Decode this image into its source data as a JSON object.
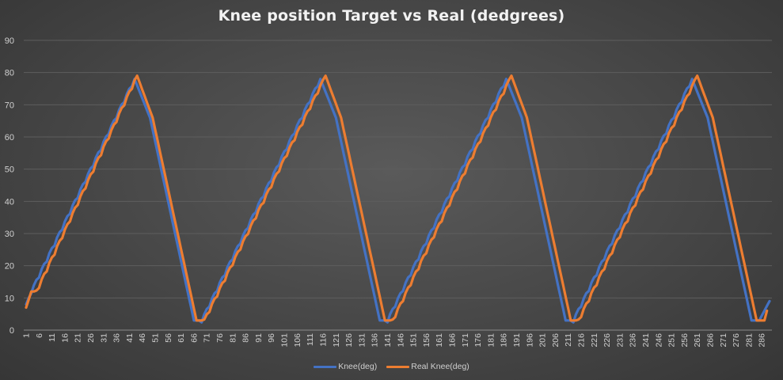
{
  "chart_data": {
    "type": "line",
    "title": "Knee position Target vs Real (dedgrees)",
    "xlabel": "",
    "ylabel": "",
    "ylim": [
      0,
      90
    ],
    "y_ticks": [
      0,
      10,
      20,
      30,
      40,
      50,
      60,
      70,
      80,
      90
    ],
    "x_range": [
      1,
      289
    ],
    "x_ticks": [
      1,
      6,
      11,
      16,
      21,
      26,
      31,
      36,
      41,
      46,
      51,
      56,
      61,
      66,
      71,
      76,
      81,
      86,
      91,
      96,
      101,
      106,
      111,
      116,
      121,
      126,
      131,
      136,
      141,
      146,
      151,
      156,
      161,
      166,
      171,
      176,
      181,
      186,
      191,
      196,
      201,
      206,
      211,
      216,
      221,
      226,
      231,
      236,
      241,
      246,
      251,
      256,
      261,
      266,
      271,
      276,
      281,
      286
    ],
    "grid": true,
    "legend_position": "bottom",
    "background": "#4a4a4a",
    "series": [
      {
        "name": "Knee(deg)",
        "color": "#4472c4",
        "keypoints": [
          [
            1,
            8
          ],
          [
            3,
            12
          ],
          [
            43,
            78
          ],
          [
            49,
            66
          ],
          [
            66,
            3
          ],
          [
            69,
            3
          ],
          [
            115,
            78
          ],
          [
            121,
            66
          ],
          [
            138,
            3
          ],
          [
            141,
            3
          ],
          [
            187,
            78
          ],
          [
            193,
            66
          ],
          [
            210,
            3
          ],
          [
            213,
            3
          ],
          [
            259,
            78
          ],
          [
            265,
            66
          ],
          [
            282,
            3
          ],
          [
            285,
            3
          ],
          [
            289,
            9
          ]
        ]
      },
      {
        "name": "Real Knee(deg)",
        "color": "#ed7d31",
        "keypoints": [
          [
            1,
            7
          ],
          [
            3,
            12
          ],
          [
            5,
            12
          ],
          [
            44,
            79
          ],
          [
            50,
            66
          ],
          [
            67,
            3
          ],
          [
            70,
            3
          ],
          [
            117,
            79
          ],
          [
            123,
            66
          ],
          [
            140,
            3
          ],
          [
            143,
            3
          ],
          [
            189,
            79
          ],
          [
            195,
            66
          ],
          [
            212,
            3
          ],
          [
            215,
            3
          ],
          [
            261,
            79
          ],
          [
            267,
            66
          ],
          [
            284,
            3
          ],
          [
            287,
            3
          ],
          [
            288,
            6
          ]
        ]
      }
    ]
  }
}
